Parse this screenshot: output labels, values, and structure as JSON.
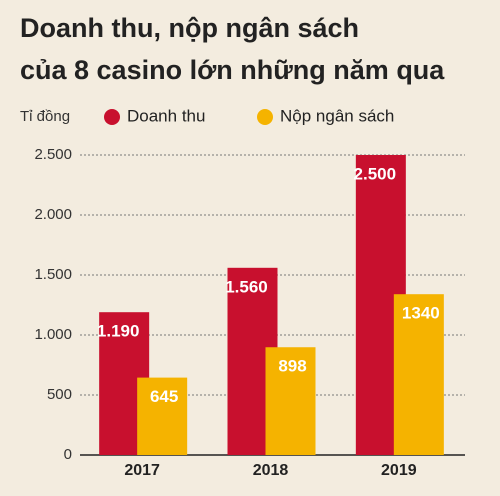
{
  "chart_data": {
    "type": "bar",
    "title": [
      "Doanh thu, nộp ngân sách",
      "của 8 casino lớn những năm qua"
    ],
    "y_axis_label": "Tỉ đồng",
    "categories": [
      "2017",
      "2018",
      "2019"
    ],
    "series": [
      {
        "name": "Doanh thu",
        "color": "#c8102e",
        "values": [
          1190,
          1560,
          2500
        ],
        "value_labels": [
          "1.190",
          "1.560",
          "2.500"
        ]
      },
      {
        "name": "Nộp ngân sách",
        "color": "#f5b300",
        "values": [
          645,
          898,
          1340
        ]
      }
    ],
    "ylim": [
      0,
      2500
    ],
    "yticks": [
      0,
      500,
      {
        "value": 1000,
        "label": "1.000"
      },
      {
        "value": 1500,
        "label": "1.500"
      },
      {
        "value": 2000,
        "label": "2.000"
      },
      {
        "value": 2500,
        "label": "2.500"
      }
    ],
    "grid": true
  }
}
